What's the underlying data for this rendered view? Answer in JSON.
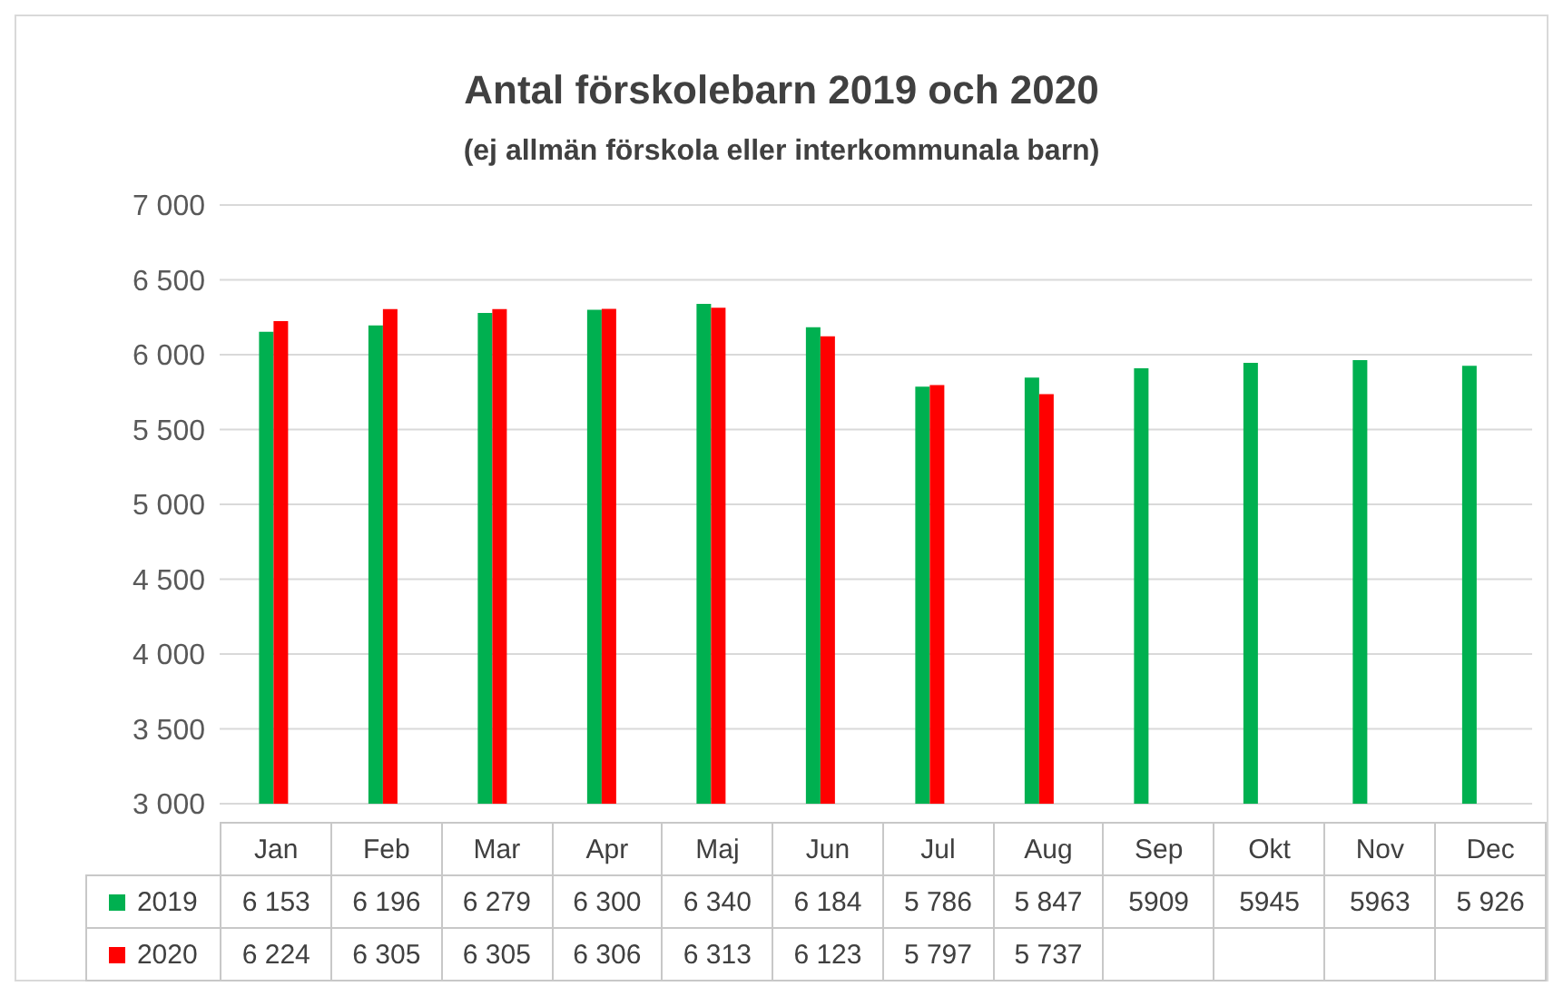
{
  "chart_data": {
    "type": "bar",
    "title": "Antal förskolebarn 2019 och 2020",
    "subtitle": "(ej allmän förskola eller interkommunala barn)",
    "categories": [
      "Jan",
      "Feb",
      "Mar",
      "Apr",
      "Maj",
      "Jun",
      "Jul",
      "Aug",
      "Sep",
      "Okt",
      "Nov",
      "Dec"
    ],
    "series": [
      {
        "name": "2019",
        "color": "#00b050",
        "values": [
          6153,
          6196,
          6279,
          6300,
          6340,
          6184,
          5786,
          5847,
          5909,
          5945,
          5963,
          5926
        ],
        "value_labels": [
          "6 153",
          "6 196",
          "6 279",
          "6 300",
          "6 340",
          "6 184",
          "5 786",
          "5 847",
          "5909",
          "5945",
          "5963",
          "5 926"
        ]
      },
      {
        "name": "2020",
        "color": "#ff0000",
        "values": [
          6224,
          6305,
          6305,
          6306,
          6313,
          6123,
          5797,
          5737,
          null,
          null,
          null,
          null
        ],
        "value_labels": [
          "6 224",
          "6 305",
          "6 305",
          "6 306",
          "6 313",
          "6 123",
          "5 797",
          "5 737",
          null,
          null,
          null,
          null
        ]
      }
    ],
    "ylim": [
      3000,
      7000
    ],
    "yticks": [
      {
        "value": 3000,
        "label": "3 000"
      },
      {
        "value": 3500,
        "label": "3 500"
      },
      {
        "value": 4000,
        "label": "4 000"
      },
      {
        "value": 4500,
        "label": "4 500"
      },
      {
        "value": 5000,
        "label": "5 000"
      },
      {
        "value": 5500,
        "label": "5 500"
      },
      {
        "value": 6000,
        "label": "6 000"
      },
      {
        "value": 6500,
        "label": "6 500"
      },
      {
        "value": 7000,
        "label": "7 000"
      }
    ],
    "grid": "y",
    "legend": "bottom"
  }
}
